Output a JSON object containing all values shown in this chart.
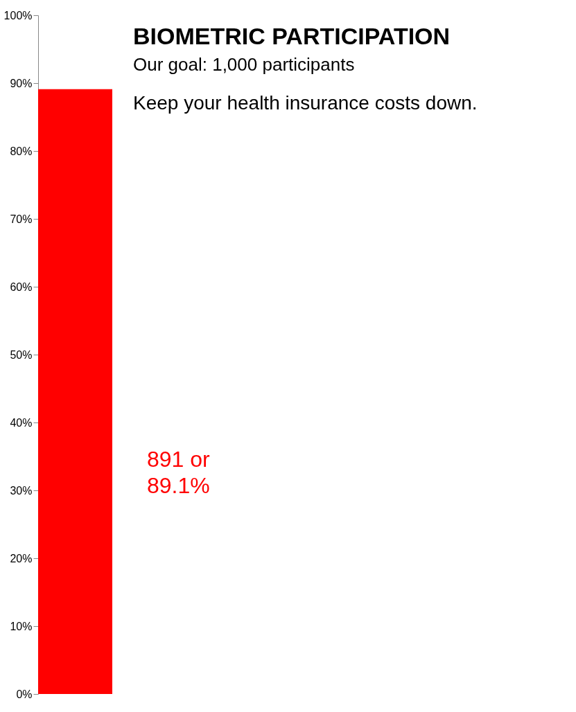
{
  "chart_data": {
    "type": "bar",
    "title": "BIOMETRIC PARTICIPATION",
    "subtitle": "Our goal: 1,000 participants",
    "categories": [
      null
    ],
    "series": [
      {
        "color": "#ff0000",
        "values": [
          89.1
        ]
      }
    ],
    "annotations": [
      "Keep your health insurance costs down.",
      "891 or 89.1%"
    ],
    "ylim": [
      0,
      100
    ],
    "yticks": [
      {
        "value": 0,
        "label": "0%"
      },
      {
        "value": 10,
        "label": "10%"
      },
      {
        "value": 20,
        "label": "20%"
      },
      {
        "value": 30,
        "label": "30%"
      },
      {
        "value": 40,
        "label": "40%"
      },
      {
        "value": 50,
        "label": "50%"
      },
      {
        "value": 60,
        "label": "60%"
      },
      {
        "value": 70,
        "label": "70%"
      },
      {
        "value": 80,
        "label": "80%"
      },
      {
        "value": 90,
        "label": "90%"
      },
      {
        "value": 100,
        "label": "100%"
      }
    ],
    "grid": false
  }
}
